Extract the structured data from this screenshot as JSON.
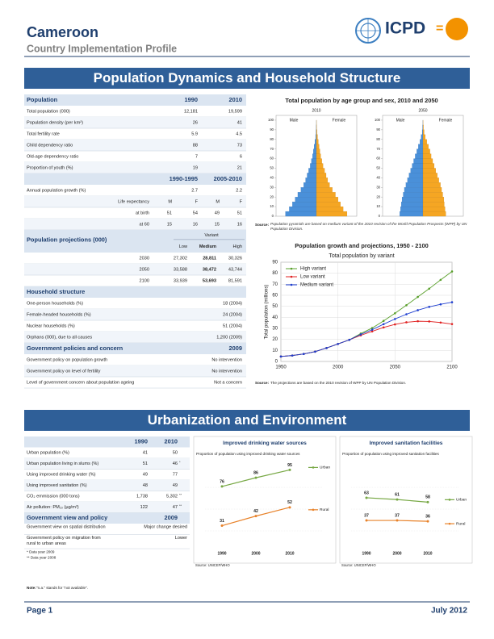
{
  "header": {
    "title": "Cameroon",
    "subtitle": "Country Implementation Profile",
    "logo": "ICPD",
    "logo_sign": "="
  },
  "section1": {
    "title": "Population Dynamics and Household Structure",
    "population": {
      "header": [
        "Population",
        "1990",
        "2010"
      ],
      "rows": [
        [
          "Total population (000)",
          "12,181",
          "19,599"
        ],
        [
          "Population density (per km²)",
          "26",
          "41"
        ],
        [
          "Total fertility rate",
          "5.9",
          "4.5"
        ],
        [
          "Child dependency ratio",
          "88",
          "73"
        ],
        [
          "Old-age dependency ratio",
          "7",
          "6"
        ],
        [
          "Proportion of youth (%)",
          "19",
          "21"
        ]
      ]
    },
    "growth": {
      "header": [
        "1990-1995",
        "2005-2010"
      ],
      "rows": [
        [
          "Annual population growth (%)",
          "2.7",
          "2.2"
        ]
      ]
    },
    "life": {
      "rows": [
        [
          "Life expectancy",
          "M",
          "F",
          "M",
          "F"
        ],
        [
          "at birth",
          "51",
          "54",
          "49",
          "51"
        ],
        [
          "at 60",
          "15",
          "16",
          "15",
          "16"
        ]
      ]
    },
    "projections": {
      "header": [
        "Population projections (000)",
        "Variant"
      ],
      "subheader": [
        "Low",
        "Medium",
        "High"
      ],
      "rows": [
        [
          "2030",
          "27,302",
          "28,811",
          "30,326"
        ],
        [
          "2050",
          "33,588",
          "38,472",
          "43,744"
        ],
        [
          "2100",
          "33,939",
          "53,693",
          "81,591"
        ]
      ]
    },
    "household": {
      "header": [
        "Household structure"
      ],
      "rows": [
        [
          "One-person households (%)",
          "18 (2004)"
        ],
        [
          "Female-headed households (%)",
          "24 (2004)"
        ],
        [
          "Nuclear households (%)",
          "51 (2004)"
        ],
        [
          "Orphans (000), due to all causes",
          "1,200 (2009)"
        ]
      ]
    },
    "policies": {
      "header": [
        "Government policies and concern",
        "2009"
      ],
      "rows": [
        [
          "Government policy on population growth",
          "No intervention"
        ],
        [
          "Government policy on level of fertility",
          "No intervention"
        ],
        [
          "Level of government concern about population ageing",
          "Not a concern"
        ]
      ]
    }
  },
  "pyramid": {
    "type": "pyramid",
    "title": "Total population by age group and sex, 2010 and 2050",
    "ylim": [
      0,
      105
    ],
    "yticks": [
      0,
      10,
      20,
      30,
      40,
      50,
      60,
      70,
      80,
      90,
      100
    ],
    "xlim": [
      -10,
      10
    ],
    "male_color": "#4a90d9",
    "female_color": "#f5a623",
    "panels": [
      {
        "year": "2010",
        "male_label": "Male",
        "female_label": "Female",
        "male": [
          8.0,
          7.0,
          6.2,
          5.5,
          4.8,
          4.0,
          3.3,
          2.8,
          2.4,
          2.0,
          1.6,
          1.3,
          1.0,
          0.8,
          0.6,
          0.4,
          0.2,
          0.1,
          0.05,
          0.01,
          0
        ],
        "female": [
          7.9,
          6.9,
          6.2,
          5.6,
          4.9,
          4.1,
          3.4,
          2.9,
          2.5,
          2.1,
          1.7,
          1.4,
          1.1,
          0.9,
          0.7,
          0.5,
          0.3,
          0.15,
          0.07,
          0.02,
          0
        ]
      },
      {
        "year": "2050",
        "male_label": "Male",
        "female_label": "Female",
        "male": [
          6.0,
          5.8,
          5.6,
          5.4,
          5.1,
          4.8,
          4.4,
          4.0,
          3.6,
          3.2,
          2.8,
          2.4,
          2.0,
          1.6,
          1.2,
          0.8,
          0.5,
          0.2,
          0.1,
          0.02,
          0
        ],
        "female": [
          5.9,
          5.7,
          5.5,
          5.4,
          5.1,
          4.8,
          4.5,
          4.1,
          3.7,
          3.3,
          2.9,
          2.5,
          2.1,
          1.8,
          1.4,
          1.0,
          0.6,
          0.3,
          0.12,
          0.03,
          0
        ]
      }
    ],
    "source_label": "Source:",
    "source": "Population pyramids are based on medium variant of the 2010 revision of the World Population Prospects (WPP) by UN Population Division."
  },
  "growth_chart": {
    "type": "line",
    "title": "Population growth and projections, 1950 - 2100",
    "subtitle": "Total population by variant",
    "y_label": "Total population (millions)",
    "x": [
      1950,
      1960,
      1970,
      1980,
      1990,
      2000,
      2010,
      2020,
      2030,
      2040,
      2050,
      2060,
      2070,
      2080,
      2090,
      2100
    ],
    "xlim": [
      1950,
      2100
    ],
    "xticks": [
      1950,
      2000,
      2050,
      2100
    ],
    "ylim": [
      0,
      90
    ],
    "yticks": [
      0,
      10,
      20,
      30,
      40,
      50,
      60,
      70,
      80,
      90
    ],
    "grid": true,
    "series": [
      {
        "name": "High variant",
        "color": "#5aa02c",
        "values": [
          4.5,
          5.4,
          6.8,
          8.9,
          12.2,
          15.9,
          19.6,
          25.3,
          30.3,
          36.8,
          43.7,
          51,
          58.5,
          66,
          74,
          81.6
        ]
      },
      {
        "name": "Low variant",
        "color": "#e02020",
        "values": [
          4.5,
          5.4,
          6.8,
          8.9,
          12.2,
          15.9,
          19.6,
          23.7,
          27.3,
          30.9,
          33.6,
          35.5,
          36.5,
          36.3,
          35.3,
          33.9
        ]
      },
      {
        "name": "Medium variant",
        "color": "#1f3fd0",
        "values": [
          4.5,
          5.4,
          6.8,
          8.9,
          12.2,
          15.9,
          19.6,
          24.5,
          28.8,
          33.8,
          38.5,
          42.8,
          46.5,
          49.5,
          51.8,
          53.7
        ]
      }
    ],
    "source_label": "Source:",
    "source": "The projections are based on the 2010 revision of WPP by UN Population Division."
  },
  "section2": {
    "title": "Urbanization and Environment",
    "indicators": {
      "header": [
        "1990",
        "2010"
      ],
      "rows": [
        [
          "Urban population (%)",
          "41",
          "50"
        ],
        [
          "Urban population living in slums (%)",
          "51",
          "46",
          "*"
        ],
        [
          "Using improved drinking water (%)",
          "49",
          "77"
        ],
        [
          "Using improved sanitation (%)",
          "48",
          "49"
        ],
        [
          "CO₂ emmission (000 tons)",
          "1,738",
          "5,302",
          "**"
        ],
        [
          "Air pollution: PM₁₀ (µg/m³)",
          "122",
          "47",
          "**"
        ]
      ]
    },
    "policy": {
      "header": [
        "Government view and policy",
        "2009"
      ],
      "rows": [
        [
          [
            "Government view on spatial distribution"
          ],
          "Major change desired"
        ],
        [
          [
            "Government policy on migration from",
            "rural to urban areas"
          ],
          "Lower"
        ]
      ]
    },
    "footnotes": [
      "* Data year 2009",
      "** Data year 2008"
    ],
    "note": {
      "label": "Note:",
      "text": "\"n.a.\" stands for \"not available\"."
    }
  },
  "water_chart": {
    "type": "line",
    "title": "Improved drinking water sources",
    "subtitle": "Proportion of population using improved drinking water sources",
    "categories": [
      "1990",
      "2000",
      "2010"
    ],
    "ylim": [
      0,
      100
    ],
    "series": [
      {
        "name": "Urban",
        "color": "#77a844",
        "values": [
          76,
          86,
          95
        ]
      },
      {
        "name": "Rural",
        "color": "#e8822a",
        "values": [
          31,
          42,
          52
        ]
      }
    ],
    "source": "Source: UNICEF/WHO"
  },
  "sanitation_chart": {
    "type": "line",
    "title": "Improved sanitation facilities",
    "subtitle": "Proportion of population using improved sanitation facilities",
    "categories": [
      "1990",
      "2000",
      "2010"
    ],
    "ylim": [
      0,
      100
    ],
    "series": [
      {
        "name": "Urban",
        "color": "#77a844",
        "values": [
          63,
          61,
          58
        ]
      },
      {
        "name": "Rural",
        "color": "#e8822a",
        "values": [
          37,
          37,
          36
        ]
      }
    ],
    "source": "Source: UNICEF/WHO"
  },
  "footer": {
    "page": "Page 1",
    "date": "July 2012"
  }
}
